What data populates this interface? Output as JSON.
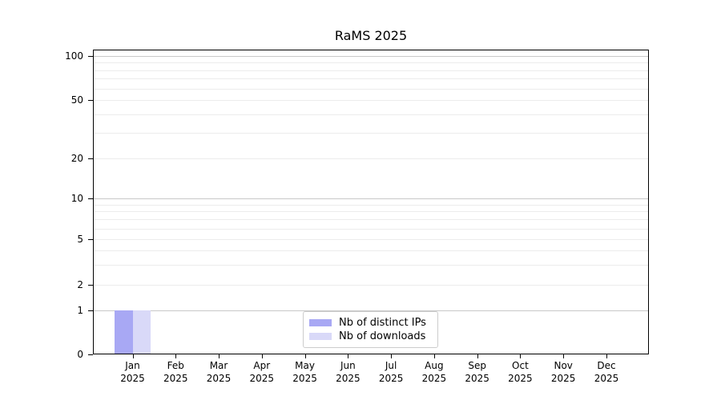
{
  "chart_data": {
    "type": "bar",
    "title": "RaMS 2025",
    "categories": [
      "Jan 2025",
      "Feb 2025",
      "Mar 2025",
      "Apr 2025",
      "May 2025",
      "Jun 2025",
      "Jul 2025",
      "Aug 2025",
      "Sep 2025",
      "Oct 2025",
      "Nov 2025",
      "Dec 2025"
    ],
    "series": [
      {
        "name": "Nb of distinct IPs",
        "color": "#a8a8f4",
        "values": [
          1,
          0,
          0,
          0,
          0,
          0,
          0,
          0,
          0,
          0,
          0,
          0
        ]
      },
      {
        "name": "Nb of downloads",
        "color": "#d9d9f8",
        "values": [
          1,
          0,
          0,
          0,
          0,
          0,
          0,
          0,
          0,
          0,
          0,
          0
        ]
      }
    ],
    "yscale": "symlog",
    "yticks": [
      0,
      1,
      2,
      5,
      10,
      20,
      50,
      100
    ],
    "minor_yticks": [
      3,
      4,
      6,
      7,
      8,
      9,
      30,
      40,
      60,
      70,
      80,
      90
    ],
    "ylim": [
      0,
      112
    ],
    "xlabel": "",
    "ylabel": "",
    "grid": true,
    "legend_position": "lower center"
  }
}
